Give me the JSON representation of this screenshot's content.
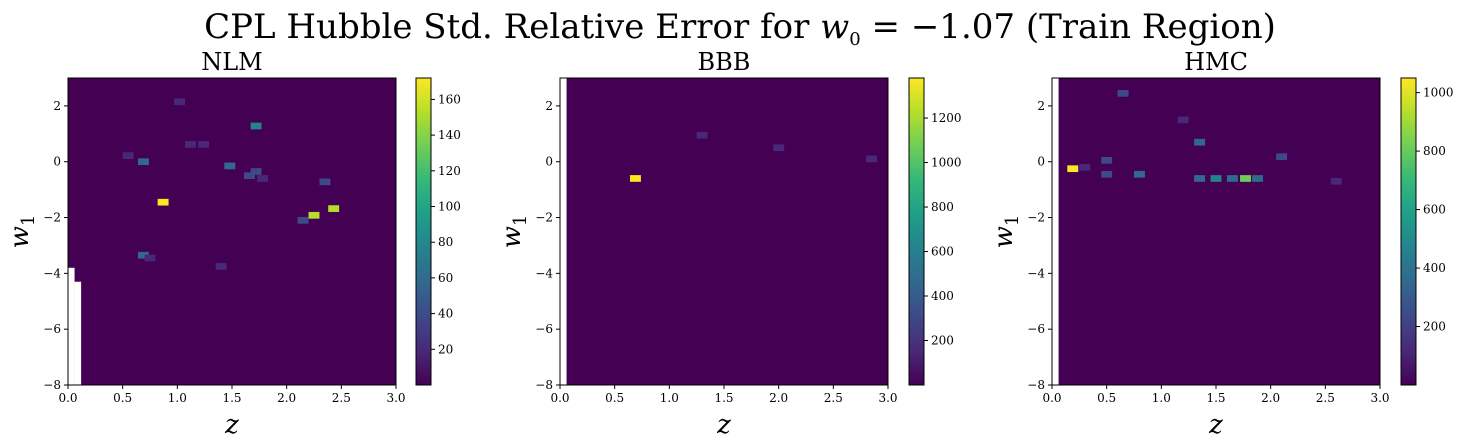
{
  "figure": {
    "title_prefix": "CPL Hubble Std.  Relative Error for ",
    "title_var": "w",
    "title_var_sub": "0",
    "title_eq": " = −1.07",
    "title_suffix": " (Train Region)"
  },
  "colormap": [
    "#440154",
    "#482878",
    "#3e4989",
    "#31688e",
    "#26828e",
    "#1f9e89",
    "#35b779",
    "#6ece58",
    "#b5de2b",
    "#fde725"
  ],
  "chart_data": [
    {
      "type": "heatmap",
      "title": "NLM",
      "xlabel": "z",
      "ylabel_var": "w",
      "ylabel_sub": "1",
      "xlim": [
        0.0,
        3.0
      ],
      "ylim": [
        -8,
        3
      ],
      "xticks": [
        "0.0",
        "0.5",
        "1.0",
        "1.5",
        "2.0",
        "2.5",
        "3.0"
      ],
      "yticks": [
        "−8",
        "−6",
        "−4",
        "−2",
        "0",
        "2"
      ],
      "colorbar": {
        "min": 0,
        "max": 172,
        "ticks": [
          20,
          40,
          60,
          80,
          100,
          120,
          140,
          160
        ]
      },
      "background_value": 1,
      "nan_regions": [
        {
          "x": [
            0.0,
            0.06
          ],
          "y": [
            -8,
            -3.8
          ]
        },
        {
          "x": [
            0.06,
            0.12
          ],
          "y": [
            -8,
            -4.3
          ]
        }
      ],
      "hot_cells": [
        {
          "z": 0.87,
          "w1": -1.45,
          "value": 170
        },
        {
          "z": 2.25,
          "w1": -1.92,
          "value": 160
        },
        {
          "z": 2.43,
          "w1": -1.68,
          "value": 150
        },
        {
          "z": 1.72,
          "w1": 1.28,
          "value": 80
        },
        {
          "z": 0.69,
          "w1": 0.0,
          "value": 60
        },
        {
          "z": 0.69,
          "w1": -3.35,
          "value": 50
        },
        {
          "z": 1.48,
          "w1": -0.15,
          "value": 50
        },
        {
          "z": 1.66,
          "w1": -0.5,
          "value": 40
        },
        {
          "z": 1.72,
          "w1": -0.35,
          "value": 45
        },
        {
          "z": 2.15,
          "w1": -2.1,
          "value": 35
        },
        {
          "z": 2.35,
          "w1": -0.72,
          "value": 35
        },
        {
          "z": 1.12,
          "w1": 0.62,
          "value": 25
        },
        {
          "z": 1.24,
          "w1": 0.62,
          "value": 22
        },
        {
          "z": 1.02,
          "w1": 2.15,
          "value": 18
        },
        {
          "z": 0.75,
          "w1": -3.45,
          "value": 20
        },
        {
          "z": 1.4,
          "w1": -3.75,
          "value": 20
        },
        {
          "z": 0.55,
          "w1": 0.22,
          "value": 12
        },
        {
          "z": 1.78,
          "w1": -0.6,
          "value": 15
        }
      ]
    },
    {
      "type": "heatmap",
      "title": "BBB",
      "xlabel": "z",
      "ylabel_var": "w",
      "ylabel_sub": "1",
      "xlim": [
        0.0,
        3.0
      ],
      "ylim": [
        -8,
        3
      ],
      "xticks": [
        "0.0",
        "0.5",
        "1.0",
        "1.5",
        "2.0",
        "2.5",
        "3.0"
      ],
      "yticks": [
        "−8",
        "−6",
        "−4",
        "−2",
        "0",
        "2"
      ],
      "colorbar": {
        "min": 0,
        "max": 1380,
        "ticks": [
          200,
          400,
          600,
          800,
          1000,
          1200
        ]
      },
      "background_value": 5,
      "nan_regions": [
        {
          "x": [
            0.0,
            0.06
          ],
          "y": [
            -8,
            3
          ]
        }
      ],
      "hot_cells": [
        {
          "z": 0.69,
          "w1": -0.6,
          "value": 1370
        },
        {
          "z": 1.3,
          "w1": 0.95,
          "value": 140
        },
        {
          "z": 2.0,
          "w1": 0.5,
          "value": 110
        },
        {
          "z": 2.85,
          "w1": 0.1,
          "value": 80
        },
        {
          "z": 0.5,
          "w1": 2.5,
          "value": 60
        },
        {
          "z": 0.35,
          "w1": -1.7,
          "value": 50
        }
      ]
    },
    {
      "type": "heatmap",
      "title": "HMC",
      "xlabel": "z",
      "ylabel_var": "w",
      "ylabel_sub": "1",
      "xlim": [
        0.0,
        3.0
      ],
      "ylim": [
        -8,
        3
      ],
      "xticks": [
        "0.0",
        "0.5",
        "1.0",
        "1.5",
        "2.0",
        "2.5",
        "3.0"
      ],
      "yticks": [
        "−8",
        "−6",
        "−4",
        "−2",
        "0",
        "2"
      ],
      "colorbar": {
        "min": 0,
        "max": 1050,
        "ticks": [
          200,
          400,
          600,
          800,
          1000
        ]
      },
      "background_value": 5,
      "nan_regions": [
        {
          "x": [
            0.0,
            0.06
          ],
          "y": [
            -8,
            3
          ]
        }
      ],
      "hot_cells": [
        {
          "z": 0.19,
          "w1": -0.25,
          "value": 1040
        },
        {
          "z": 1.77,
          "w1": -0.6,
          "value": 850
        },
        {
          "z": 1.5,
          "w1": -0.6,
          "value": 420
        },
        {
          "z": 1.35,
          "w1": -0.6,
          "value": 380
        },
        {
          "z": 1.65,
          "w1": -0.6,
          "value": 360
        },
        {
          "z": 1.88,
          "w1": -0.6,
          "value": 340
        },
        {
          "z": 1.35,
          "w1": 0.7,
          "value": 320
        },
        {
          "z": 0.8,
          "w1": -0.45,
          "value": 300
        },
        {
          "z": 0.5,
          "w1": -0.45,
          "value": 250
        },
        {
          "z": 0.5,
          "w1": 0.05,
          "value": 220
        },
        {
          "z": 2.1,
          "w1": 0.18,
          "value": 200
        },
        {
          "z": 0.65,
          "w1": 2.45,
          "value": 180
        },
        {
          "z": 0.3,
          "w1": -0.2,
          "value": 150
        },
        {
          "z": 2.6,
          "w1": -0.7,
          "value": 120
        },
        {
          "z": 1.2,
          "w1": 1.5,
          "value": 110
        }
      ]
    }
  ]
}
